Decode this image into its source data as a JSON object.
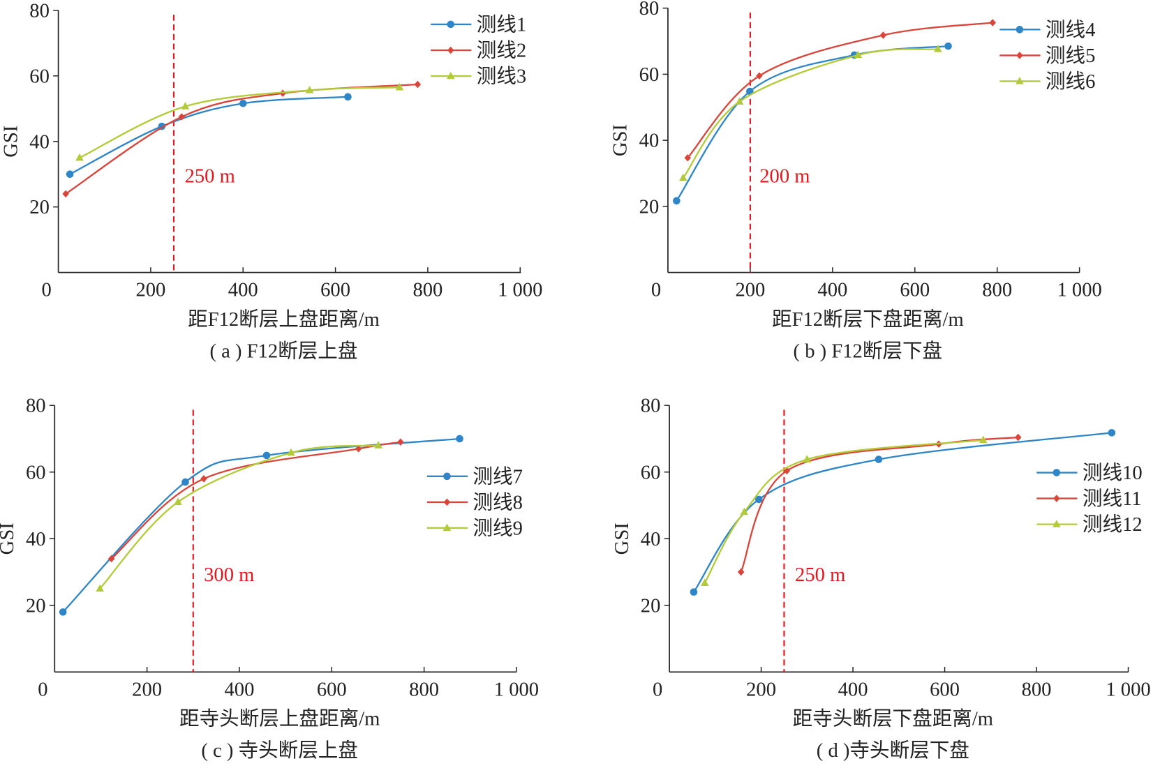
{
  "colors": {
    "blue": "#2e86c8",
    "red": "#d9453a",
    "green": "#b3cb38",
    "threshold": "#e8141c"
  },
  "chart_data": [
    {
      "type": "line",
      "caption": "( a ) F12断层上盘",
      "xlabel": "距F12断层上盘距离/m",
      "ylabel": "GSI",
      "xlim": [
        0,
        1000
      ],
      "ylim": [
        0,
        80
      ],
      "xticks": [
        "0",
        "200",
        "400",
        "600",
        "800",
        "1 000"
      ],
      "xtick_values": [
        0,
        200,
        400,
        600,
        800,
        1000
      ],
      "yticks": [
        "20",
        "40",
        "60",
        "80"
      ],
      "ytick_values": [
        20,
        40,
        60,
        80
      ],
      "legend_position": "top-right",
      "threshold": {
        "x": 250,
        "label": "250 m"
      },
      "series": [
        {
          "name": "测线1",
          "color": "blue",
          "marker": "circle",
          "x": [
            25,
            224,
            400,
            627
          ],
          "y": [
            30,
            44.6,
            51.6,
            53.6
          ]
        },
        {
          "name": "测线2",
          "color": "red",
          "marker": "diamond",
          "x": [
            16,
            267,
            486,
            778
          ],
          "y": [
            24,
            47.5,
            54.7,
            57.4
          ]
        },
        {
          "name": "测线3",
          "color": "green",
          "marker": "triangle",
          "x": [
            46,
            275,
            544,
            739
          ],
          "y": [
            35,
            50.7,
            55.6,
            56.5
          ]
        }
      ]
    },
    {
      "type": "line",
      "caption": "( b ) F12断层下盘",
      "xlabel": "距F12断层下盘距离/m",
      "ylabel": "GSI",
      "xlim": [
        0,
        1000
      ],
      "ylim": [
        0,
        80
      ],
      "xticks": [
        "0",
        "200",
        "400",
        "600",
        "800",
        "1 000"
      ],
      "xtick_values": [
        0,
        200,
        400,
        600,
        800,
        1000
      ],
      "yticks": [
        "20",
        "40",
        "60",
        "80"
      ],
      "ytick_values": [
        20,
        40,
        60,
        80
      ],
      "legend_position": "top-right",
      "threshold": {
        "x": 200,
        "label": "200 m"
      },
      "series": [
        {
          "name": "测线4",
          "color": "blue",
          "marker": "circle",
          "x": [
            21,
            199,
            453,
            681
          ],
          "y": [
            21.7,
            54.8,
            65.8,
            68.5
          ]
        },
        {
          "name": "测线5",
          "color": "red",
          "marker": "diamond",
          "x": [
            48,
            222,
            523,
            789
          ],
          "y": [
            34.7,
            59.5,
            71.8,
            75.6
          ]
        },
        {
          "name": "测线6",
          "color": "green",
          "marker": "triangle",
          "x": [
            37,
            174,
            462,
            656
          ],
          "y": [
            28.6,
            51.7,
            65.8,
            67.6
          ]
        }
      ]
    },
    {
      "type": "line",
      "caption": "( c ) 寺头断层上盘",
      "xlabel": "距寺头断层上盘距离/m",
      "ylabel": "GSI",
      "xlim": [
        0,
        1000
      ],
      "ylim": [
        0,
        80
      ],
      "xticks": [
        "0",
        "200",
        "400",
        "600",
        "800",
        "1 000"
      ],
      "xtick_values": [
        0,
        200,
        400,
        600,
        800,
        1000
      ],
      "yticks": [
        "20",
        "40",
        "60",
        "80"
      ],
      "ytick_values": [
        20,
        40,
        60,
        80
      ],
      "legend_position": "center-right",
      "threshold": {
        "x": 300,
        "label": "300 m"
      },
      "series": [
        {
          "name": "测线7",
          "color": "blue",
          "marker": "circle",
          "x": [
            18,
            283,
            459,
            877
          ],
          "y": [
            18,
            57,
            65,
            70
          ]
        },
        {
          "name": "测线8",
          "color": "red",
          "marker": "diamond",
          "x": [
            123,
            323,
            658,
            749
          ],
          "y": [
            34,
            58,
            67,
            69
          ]
        },
        {
          "name": "测线9",
          "color": "green",
          "marker": "triangle",
          "x": [
            98,
            267,
            512,
            701
          ],
          "y": [
            25,
            51,
            65.8,
            68
          ]
        }
      ]
    },
    {
      "type": "line",
      "caption": "( d )寺头断层下盘",
      "xlabel": "距寺头断层下盘距离/m",
      "ylabel": "GSI",
      "xlim": [
        0,
        1000
      ],
      "ylim": [
        0,
        80
      ],
      "xticks": [
        "0",
        "200",
        "400",
        "600",
        "800",
        "1 000"
      ],
      "xtick_values": [
        0,
        200,
        400,
        600,
        800,
        1000
      ],
      "yticks": [
        "20",
        "40",
        "60",
        "80"
      ],
      "ytick_values": [
        20,
        40,
        60,
        80
      ],
      "legend_position": "center-right",
      "threshold": {
        "x": 250,
        "label": "250 m"
      },
      "series": [
        {
          "name": "测线10",
          "color": "blue",
          "marker": "circle",
          "x": [
            53,
            195,
            456,
            964
          ],
          "y": [
            24,
            51.8,
            63.8,
            71.8
          ]
        },
        {
          "name": "测线11",
          "color": "red",
          "marker": "diamond",
          "x": [
            156,
            256,
            587,
            760
          ],
          "y": [
            30,
            60.4,
            68.4,
            70.4
          ]
        },
        {
          "name": "测线12",
          "color": "green",
          "marker": "triangle",
          "x": [
            77,
            163,
            300,
            684
          ],
          "y": [
            26.7,
            48,
            63.8,
            69.6
          ]
        }
      ]
    }
  ]
}
